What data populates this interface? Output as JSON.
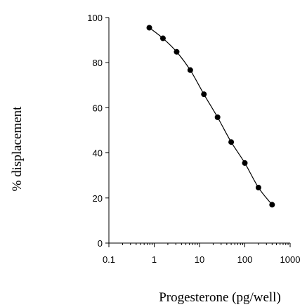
{
  "chart_data": {
    "type": "scatter",
    "title": "",
    "xlabel": "Progesterone (pg/well)",
    "ylabel": "% displacement",
    "x_scale": "log",
    "xlim": [
      0.1,
      1000
    ],
    "ylim": [
      0,
      100
    ],
    "x_ticks": [
      0.1,
      1,
      10,
      100,
      1000
    ],
    "x_tick_labels": [
      "0.1",
      "1",
      "10",
      "100",
      "1000"
    ],
    "y_ticks": [
      0,
      20,
      40,
      60,
      80,
      100
    ],
    "y_tick_labels": [
      "0",
      "20",
      "40",
      "60",
      "80",
      "100"
    ],
    "grid": false,
    "legend": "none",
    "marker_color": "#000000",
    "line_color": "#000000",
    "fit_line": true,
    "series": [
      {
        "x": [
          0.78,
          1.56,
          3.13,
          6.25,
          12.5,
          25,
          50,
          100,
          200,
          400
        ],
        "y": [
          95.5,
          90.8,
          84.8,
          76.7,
          66.0,
          55.8,
          44.8,
          35.5,
          24.6,
          17.0
        ]
      }
    ]
  }
}
